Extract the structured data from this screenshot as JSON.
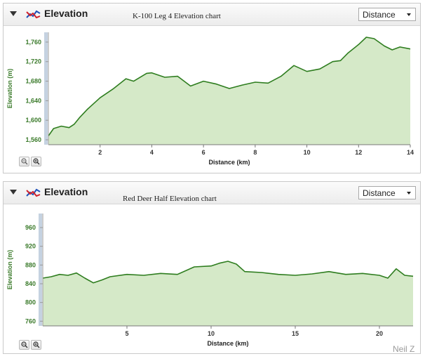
{
  "panels": [
    {
      "header_title": "Elevation",
      "icon": "elevation-chart-icon",
      "chart_title": "K-100 Leg 4 Elevation chart",
      "axis_select_value": "Distance",
      "zoom_icons": [
        "zoom-out-icon",
        "zoom-in-icon"
      ],
      "chart_data": {
        "type": "area",
        "xlabel": "Distance (km)",
        "ylabel": "Elevation (m)",
        "xlim": [
          0,
          14
        ],
        "ylim": [
          1550,
          1780
        ],
        "xticks": [
          2,
          4,
          6,
          8,
          10,
          12,
          14
        ],
        "yticks": [
          1560,
          1600,
          1640,
          1680,
          1720,
          1760
        ],
        "xtick_labels": [
          "2",
          "4",
          "6",
          "8",
          "10",
          "12",
          "14"
        ],
        "ytick_labels": [
          "1,560",
          "1,600",
          "1,640",
          "1,680",
          "1,720",
          "1,760"
        ],
        "grid": false,
        "line_color": "#2e7d1f",
        "fill_color": "#d5e9c8",
        "x": [
          0,
          0.2,
          0.5,
          0.8,
          1.0,
          1.2,
          1.5,
          2.0,
          2.5,
          3.0,
          3.3,
          3.8,
          4.0,
          4.5,
          5.0,
          5.5,
          6.0,
          6.5,
          7.0,
          7.5,
          8.0,
          8.5,
          9.0,
          9.5,
          10.0,
          10.5,
          11.0,
          11.3,
          11.6,
          12.0,
          12.3,
          12.6,
          13.0,
          13.3,
          13.6,
          14.0
        ],
        "y": [
          1568,
          1583,
          1588,
          1585,
          1592,
          1605,
          1622,
          1646,
          1664,
          1685,
          1680,
          1696,
          1697,
          1688,
          1690,
          1670,
          1680,
          1674,
          1665,
          1672,
          1678,
          1676,
          1690,
          1712,
          1700,
          1705,
          1720,
          1722,
          1738,
          1755,
          1770,
          1767,
          1752,
          1744,
          1750,
          1746
        ]
      }
    },
    {
      "header_title": "Elevation",
      "icon": "elevation-chart-icon",
      "chart_title": "Red Deer Half Elevation chart",
      "axis_select_value": "Distance",
      "zoom_icons": [
        "zoom-out-icon",
        "zoom-in-icon"
      ],
      "chart_data": {
        "type": "area",
        "xlabel": "Distance (km)",
        "ylabel": "Elevation (m)",
        "xlim": [
          0,
          22
        ],
        "ylim": [
          750,
          990
        ],
        "xticks": [
          5,
          10,
          15,
          20
        ],
        "yticks": [
          760,
          800,
          840,
          880,
          920,
          960
        ],
        "xtick_labels": [
          "5",
          "10",
          "15",
          "20"
        ],
        "ytick_labels": [
          "760",
          "800",
          "840",
          "880",
          "920",
          "960"
        ],
        "grid": false,
        "line_color": "#2e7d1f",
        "fill_color": "#d5e9c8",
        "x": [
          0,
          0.5,
          1.0,
          1.5,
          2.0,
          2.5,
          3.0,
          3.5,
          4.0,
          5.0,
          6.0,
          7.0,
          8.0,
          9.0,
          10.0,
          10.5,
          11.0,
          11.5,
          12.0,
          13.0,
          14.0,
          15.0,
          16.0,
          17.0,
          18.0,
          19.0,
          20.0,
          20.5,
          21.0,
          21.5,
          22.0
        ],
        "y": [
          852,
          855,
          860,
          858,
          863,
          852,
          842,
          848,
          855,
          860,
          858,
          862,
          860,
          876,
          878,
          884,
          888,
          882,
          866,
          864,
          860,
          858,
          861,
          866,
          860,
          862,
          858,
          852,
          872,
          858,
          856
        ]
      }
    }
  ],
  "watermark": "Neil Z"
}
